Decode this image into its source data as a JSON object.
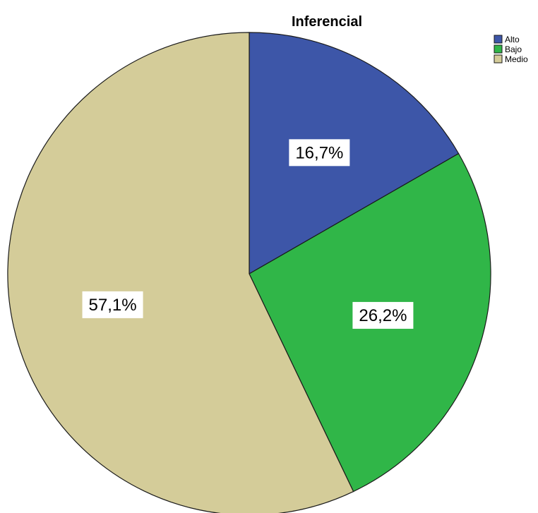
{
  "chart_data": {
    "type": "pie",
    "title": "Inferencial",
    "legend_position": "top-right",
    "slices": [
      {
        "name": "Alto",
        "value": 16.7,
        "label": "16,7%",
        "color": "#3d56a8"
      },
      {
        "name": "Bajo",
        "value": 26.2,
        "label": "26,2%",
        "color": "#30b648"
      },
      {
        "name": "Medio",
        "value": 57.1,
        "label": "57,1%",
        "color": "#d4cc99"
      }
    ]
  }
}
